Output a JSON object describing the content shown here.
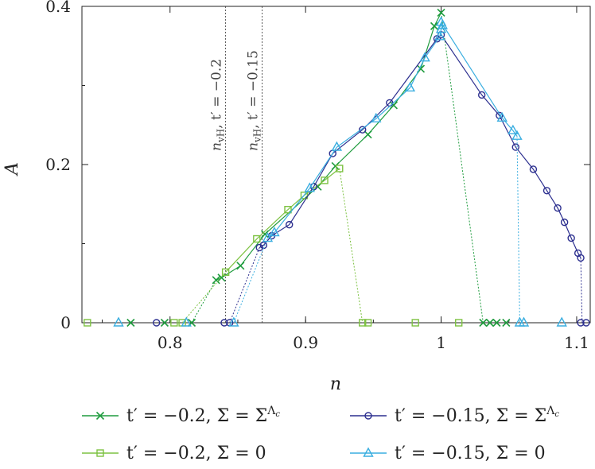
{
  "chart_data": {
    "type": "line",
    "xlabel": "n",
    "ylabel": "A",
    "xlim": [
      0.735,
      1.11
    ],
    "ylim": [
      0,
      0.4
    ],
    "xticks": [
      0.8,
      0.9,
      1,
      1.1
    ],
    "xtick_labels": [
      "0.8",
      "0.9",
      "1",
      "1.1"
    ],
    "yticks": [
      0,
      0.2,
      0.4
    ],
    "ytick_labels": [
      "0",
      "0.2",
      "0.4"
    ],
    "grid": false,
    "legend_position": "bottom",
    "vertical_lines": [
      {
        "x": 0.841,
        "label_prefix": "n",
        "label_sub": "vH",
        "label_rest": ", t′ = −0.2"
      },
      {
        "x": 0.868,
        "label_prefix": "n",
        "label_sub": "vH",
        "label_rest": ", t′ = −0.15"
      }
    ],
    "series": [
      {
        "name": "t′ = −0.2, Σ = Σ^Λc",
        "legend_main": "t′ = −0.2, Σ = Σ",
        "legend_sup": "Λ",
        "legend_subsup": "c",
        "color": "#1f9c3e",
        "marker": "x",
        "points": [
          [
            0.834,
            0.054
          ],
          [
            0.838,
            0.057
          ],
          [
            0.852,
            0.072
          ],
          [
            0.87,
            0.112
          ],
          [
            0.909,
            0.172
          ],
          [
            0.922,
            0.198
          ],
          [
            0.946,
            0.238
          ],
          [
            0.965,
            0.275
          ],
          [
            0.985,
            0.321
          ],
          [
            0.995,
            0.375
          ],
          [
            1.0,
            0.392
          ]
        ],
        "drop_line": [
          [
            1.0,
            0.392
          ],
          [
            1.031,
            0
          ]
        ],
        "low_line": [
          [
            0.816,
            0
          ],
          [
            0.834,
            0.054
          ]
        ],
        "zeros": [
          0.771,
          0.796,
          0.816,
          1.031,
          1.036,
          1.041,
          1.048
        ]
      },
      {
        "name": "t′ = −0.2, Σ = 0",
        "legend_main": "t′ = −0.2, Σ = 0",
        "color": "#7dc242",
        "marker": "square",
        "points": [
          [
            0.841,
            0.064
          ],
          [
            0.864,
            0.106
          ],
          [
            0.887,
            0.143
          ],
          [
            0.899,
            0.161
          ],
          [
            0.914,
            0.18
          ],
          [
            0.925,
            0.195
          ]
        ],
        "drop_line": [
          [
            0.925,
            0.195
          ],
          [
            0.942,
            0
          ]
        ],
        "low_line": [
          [
            0.809,
            0
          ],
          [
            0.841,
            0.064
          ]
        ],
        "zeros": [
          0.739,
          0.803,
          0.809,
          0.942,
          0.946,
          0.981,
          1.013
        ]
      },
      {
        "name": "t′ = −0.15, Σ = Σ^Λc",
        "legend_main": "t′ = −0.15, Σ = Σ",
        "legend_sup": "Λ",
        "legend_subsup": "c",
        "color": "#2c2f8f",
        "marker": "circle",
        "points": [
          [
            0.866,
            0.095
          ],
          [
            0.869,
            0.098
          ],
          [
            0.875,
            0.11
          ],
          [
            0.888,
            0.124
          ],
          [
            0.906,
            0.172
          ],
          [
            0.92,
            0.214
          ],
          [
            0.942,
            0.244
          ],
          [
            0.962,
            0.278
          ],
          [
            0.997,
            0.359
          ],
          [
            1.0,
            0.364
          ],
          [
            1.03,
            0.288
          ],
          [
            1.043,
            0.262
          ],
          [
            1.055,
            0.222
          ],
          [
            1.068,
            0.194
          ],
          [
            1.078,
            0.167
          ],
          [
            1.086,
            0.145
          ],
          [
            1.091,
            0.127
          ],
          [
            1.096,
            0.107
          ],
          [
            1.101,
            0.088
          ],
          [
            1.103,
            0.082
          ]
        ],
        "drop_line": [
          [
            0.866,
            0.095
          ],
          [
            0.844,
            0
          ]
        ],
        "drop_line2": [
          [
            1.103,
            0.082
          ],
          [
            1.104,
            0
          ]
        ],
        "zeros": [
          0.79,
          0.84,
          0.844,
          1.103,
          1.107
        ]
      },
      {
        "name": "t′ = −0.15, Σ = 0",
        "legend_main": "t′ = −0.15, Σ = 0",
        "color": "#3aaee0",
        "marker": "triangle",
        "points": [
          [
            0.872,
            0.107
          ],
          [
            0.877,
            0.114
          ],
          [
            0.903,
            0.17
          ],
          [
            0.923,
            0.222
          ],
          [
            0.952,
            0.258
          ],
          [
            0.977,
            0.297
          ],
          [
            0.988,
            0.335
          ],
          [
            0.999,
            0.362
          ],
          [
            1.0,
            0.371
          ],
          [
            1.001,
            0.376
          ],
          [
            1.0,
            0.38
          ],
          [
            1.045,
            0.259
          ],
          [
            1.053,
            0.243
          ],
          [
            1.056,
            0.236
          ]
        ],
        "drop_line": [
          [
            1.056,
            0.236
          ],
          [
            1.058,
            0
          ]
        ],
        "low_line": [
          [
            0.847,
            0
          ],
          [
            0.872,
            0.107
          ]
        ],
        "zeros": [
          0.762,
          0.812,
          0.847,
          1.058,
          1.061,
          1.089
        ]
      }
    ]
  }
}
